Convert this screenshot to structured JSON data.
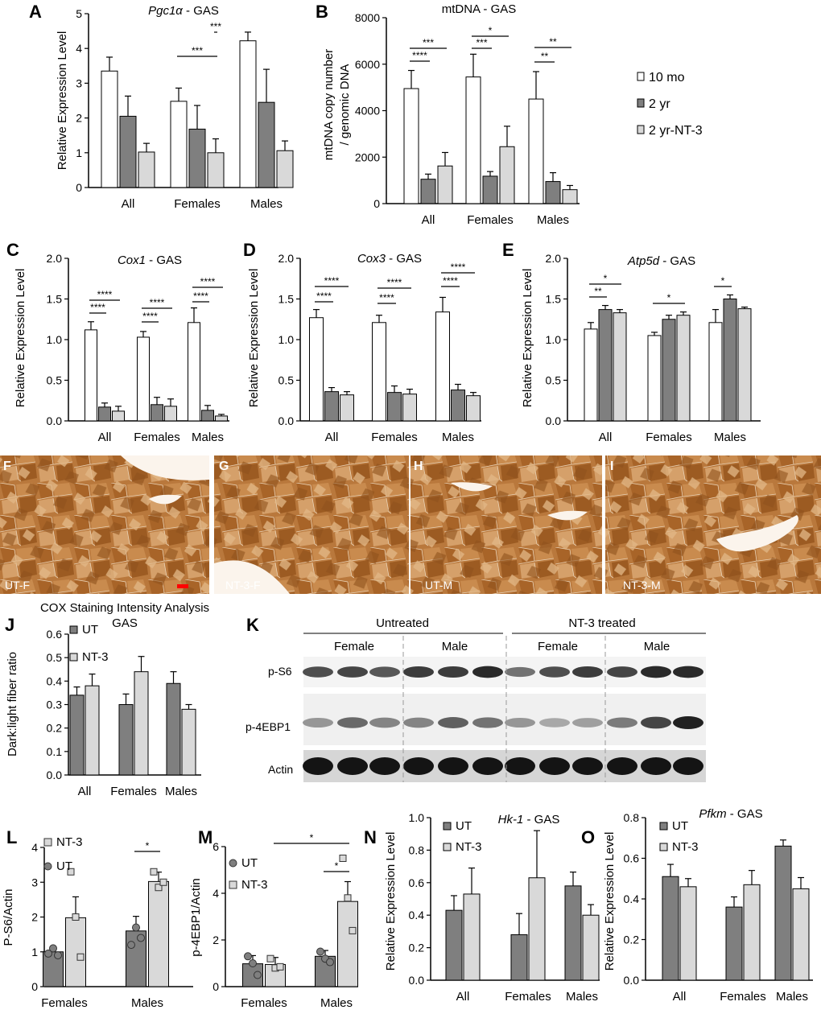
{
  "colors": {
    "white": "#ffffff",
    "dark": "#7f7f7f",
    "light": "#d9d9d9",
    "axis": "#000000",
    "ut": "#7f7f7f",
    "nt3": "#d9d9d9"
  },
  "legend_main": [
    "10 mo",
    "2 yr",
    "2 yr-NT-3"
  ],
  "groups": [
    "All",
    "Females",
    "Males"
  ],
  "groups_lm": [
    "Females",
    "Males"
  ],
  "chart_data": [
    {
      "panel": "A",
      "type": "bar",
      "title_italic": "Pgc1α",
      "title_rest": " - GAS",
      "ylabel": "Relative Expression Level",
      "ylim": [
        0,
        5
      ],
      "yticks": [
        0,
        1,
        2,
        3,
        4,
        5
      ],
      "categories": [
        "All",
        "Females",
        "Males"
      ],
      "series": [
        {
          "name": "10 mo",
          "values": [
            3.35,
            2.48,
            4.22
          ],
          "errors": [
            0.4,
            0.38,
            0.25
          ]
        },
        {
          "name": "2 yr",
          "values": [
            2.05,
            1.68,
            2.45
          ],
          "errors": [
            0.58,
            0.68,
            0.95
          ]
        },
        {
          "name": "2 yr-NT-3",
          "values": [
            1.02,
            1.0,
            1.06
          ],
          "errors": [
            0.25,
            0.4,
            0.28
          ]
        }
      ],
      "significance": [
        "***",
        "***"
      ]
    },
    {
      "panel": "B",
      "type": "bar",
      "title": "mtDNA - GAS",
      "ylabel": "mtDNA copy number / genomic DNA",
      "ylim": [
        0,
        8000
      ],
      "yticks": [
        0,
        2000,
        4000,
        6000,
        8000
      ],
      "categories": [
        "All",
        "Females",
        "Males"
      ],
      "series": [
        {
          "name": "10 mo",
          "values": [
            4950,
            5450,
            4500
          ],
          "errors": [
            780,
            980,
            1180
          ]
        },
        {
          "name": "2 yr",
          "values": [
            1050,
            1180,
            950
          ],
          "errors": [
            220,
            200,
            380
          ]
        },
        {
          "name": "2 yr-NT-3",
          "values": [
            1620,
            2450,
            600
          ],
          "errors": [
            580,
            880,
            180
          ]
        }
      ],
      "significance": [
        "***",
        "****",
        "*",
        "***",
        "**",
        "**"
      ]
    },
    {
      "panel": "C",
      "type": "bar",
      "title_italic": "Cox1",
      "title_rest": " - GAS",
      "ylabel": "Relative Expression Level",
      "ylim": [
        0,
        2.0
      ],
      "yticks": [
        0.0,
        0.5,
        1.0,
        1.5,
        2.0
      ],
      "categories": [
        "All",
        "Females",
        "Males"
      ],
      "series": [
        {
          "name": "10 mo",
          "values": [
            1.12,
            1.03,
            1.21
          ],
          "errors": [
            0.1,
            0.07,
            0.18
          ]
        },
        {
          "name": "2 yr",
          "values": [
            0.17,
            0.2,
            0.13
          ],
          "errors": [
            0.05,
            0.09,
            0.06
          ]
        },
        {
          "name": "2 yr-NT-3",
          "values": [
            0.12,
            0.18,
            0.06
          ],
          "errors": [
            0.06,
            0.09,
            0.02
          ]
        }
      ],
      "significance": [
        "****",
        "****",
        "****",
        "****",
        "****",
        "****"
      ]
    },
    {
      "panel": "D",
      "type": "bar",
      "title_italic": "Cox3",
      "title_rest": " - GAS",
      "ylabel": "Relative Expression Level",
      "ylim": [
        0,
        2.0
      ],
      "yticks": [
        0.0,
        0.5,
        1.0,
        1.5,
        2.0
      ],
      "categories": [
        "All",
        "Females",
        "Males"
      ],
      "series": [
        {
          "name": "10 mo",
          "values": [
            1.27,
            1.21,
            1.34
          ],
          "errors": [
            0.1,
            0.09,
            0.18
          ]
        },
        {
          "name": "2 yr",
          "values": [
            0.36,
            0.35,
            0.38
          ],
          "errors": [
            0.05,
            0.08,
            0.07
          ]
        },
        {
          "name": "2 yr-NT-3",
          "values": [
            0.32,
            0.33,
            0.31
          ],
          "errors": [
            0.04,
            0.06,
            0.04
          ]
        }
      ],
      "significance": [
        "****",
        "****",
        "****",
        "****",
        "****",
        "****"
      ]
    },
    {
      "panel": "E",
      "type": "bar",
      "title_italic": "Atp5d",
      "title_rest": " - GAS",
      "ylabel": "Relative Expression Level",
      "ylim": [
        0,
        2.0
      ],
      "yticks": [
        0.0,
        0.5,
        1.0,
        1.5,
        2.0
      ],
      "categories": [
        "All",
        "Females",
        "Males"
      ],
      "series": [
        {
          "name": "10 mo",
          "values": [
            1.13,
            1.05,
            1.21
          ],
          "errors": [
            0.08,
            0.04,
            0.16
          ]
        },
        {
          "name": "2 yr",
          "values": [
            1.37,
            1.25,
            1.5
          ],
          "errors": [
            0.05,
            0.05,
            0.05
          ]
        },
        {
          "name": "2 yr-NT-3",
          "values": [
            1.33,
            1.3,
            1.38
          ],
          "errors": [
            0.04,
            0.04,
            0.02
          ]
        }
      ],
      "significance": [
        "*",
        "**",
        "*",
        "*"
      ]
    },
    {
      "panel": "J",
      "type": "bar",
      "title": "COX Staining Intensity Analysis",
      "subtitle": "GAS",
      "ylabel": "Dark:light fiber ratio",
      "ylim": [
        0,
        0.6
      ],
      "yticks": [
        0.0,
        0.1,
        0.2,
        0.3,
        0.4,
        0.5,
        0.6
      ],
      "categories": [
        "All",
        "Females",
        "Males"
      ],
      "series": [
        {
          "name": "UT",
          "values": [
            0.34,
            0.3,
            0.39
          ],
          "errors": [
            0.035,
            0.045,
            0.05
          ]
        },
        {
          "name": "NT-3",
          "values": [
            0.38,
            0.44,
            0.28
          ],
          "errors": [
            0.05,
            0.065,
            0.02
          ]
        }
      ]
    },
    {
      "panel": "L",
      "type": "bar",
      "ylabel": "P-S6/Actin",
      "ylim": [
        0,
        4
      ],
      "yticks": [
        0,
        1,
        2,
        3,
        4
      ],
      "categories": [
        "Females",
        "Males"
      ],
      "series": [
        {
          "name": "UT",
          "values": [
            1.0,
            1.6
          ],
          "errors": [
            0.1,
            0.42
          ],
          "points": [
            [
              0.95,
              1.1,
              0.9
            ],
            [
              1.2,
              1.7,
              1.4
            ]
          ]
        },
        {
          "name": "NT-3",
          "values": [
            1.98,
            3.02
          ],
          "errors": [
            0.6,
            0.27
          ],
          "points": [
            [
              3.3,
              2.0,
              0.85
            ],
            [
              3.3,
              2.85,
              3.0
            ]
          ]
        }
      ],
      "significance": [
        "*"
      ]
    },
    {
      "panel": "M",
      "type": "bar",
      "ylabel": "p-4EBP1/Actin",
      "ylim": [
        0,
        6
      ],
      "yticks": [
        0,
        2,
        4,
        6
      ],
      "categories": [
        "Females",
        "Males"
      ],
      "series": [
        {
          "name": "UT",
          "values": [
            0.98,
            1.3
          ],
          "errors": [
            0.35,
            0.25
          ],
          "points": [
            [
              1.3,
              1.0,
              0.5
            ],
            [
              1.5,
              1.2,
              1.05
            ]
          ]
        },
        {
          "name": "NT-3",
          "values": [
            0.95,
            3.65
          ],
          "errors": [
            0.3,
            0.85
          ],
          "points": [
            [
              1.2,
              0.8,
              0.85
            ],
            [
              5.5,
              3.8,
              2.4
            ]
          ]
        }
      ],
      "significance": [
        "*",
        "*"
      ]
    },
    {
      "panel": "N",
      "type": "bar",
      "title_italic": "Hk-1",
      "title_rest": " - GAS",
      "ylabel": "Relative Expression Level",
      "ylim": [
        0,
        1.0
      ],
      "yticks": [
        0.0,
        0.2,
        0.4,
        0.6,
        0.8,
        1.0
      ],
      "categories": [
        "All",
        "Females",
        "Males"
      ],
      "series": [
        {
          "name": "UT",
          "values": [
            0.43,
            0.28,
            0.58
          ],
          "errors": [
            0.09,
            0.13,
            0.085
          ]
        },
        {
          "name": "NT-3",
          "values": [
            0.53,
            0.63,
            0.4
          ],
          "errors": [
            0.16,
            0.29,
            0.065
          ]
        }
      ]
    },
    {
      "panel": "O",
      "type": "bar",
      "title_italic": "Pfkm",
      "title_rest": " - GAS",
      "ylabel": "Relative Expression Level",
      "ylim": [
        0,
        0.8
      ],
      "yticks": [
        0.0,
        0.2,
        0.4,
        0.6,
        0.8
      ],
      "categories": [
        "All",
        "Females",
        "Males"
      ],
      "series": [
        {
          "name": "UT",
          "values": [
            0.51,
            0.36,
            0.66
          ],
          "errors": [
            0.06,
            0.05,
            0.03
          ]
        },
        {
          "name": "NT-3",
          "values": [
            0.46,
            0.47,
            0.45
          ],
          "errors": [
            0.04,
            0.07,
            0.055
          ]
        }
      ]
    }
  ],
  "histology": {
    "panels": [
      {
        "letter": "F",
        "label": "UT-F"
      },
      {
        "letter": "G",
        "label": "NT-3-F"
      },
      {
        "letter": "H",
        "label": "UT-M"
      },
      {
        "letter": "I",
        "label": "NT-3-M"
      }
    ]
  },
  "blot": {
    "letter": "K",
    "treatments": [
      "Untreated",
      "NT-3 treated"
    ],
    "sexes": [
      "Female",
      "Male",
      "Female",
      "Male"
    ],
    "rows": [
      {
        "label": "p-S6",
        "intensities": [
          0.75,
          0.8,
          0.7,
          0.85,
          0.85,
          0.95,
          0.55,
          0.75,
          0.85,
          0.8,
          0.95,
          0.95
        ]
      },
      {
        "label": "p-4EBP1",
        "intensities": [
          0.35,
          0.6,
          0.45,
          0.45,
          0.65,
          0.55,
          0.35,
          0.25,
          0.3,
          0.5,
          0.8,
          1.0
        ]
      },
      {
        "label": "Actin",
        "intensities": [
          1,
          1,
          1,
          1,
          1,
          1,
          1,
          1,
          1,
          1,
          1,
          1
        ]
      }
    ]
  }
}
